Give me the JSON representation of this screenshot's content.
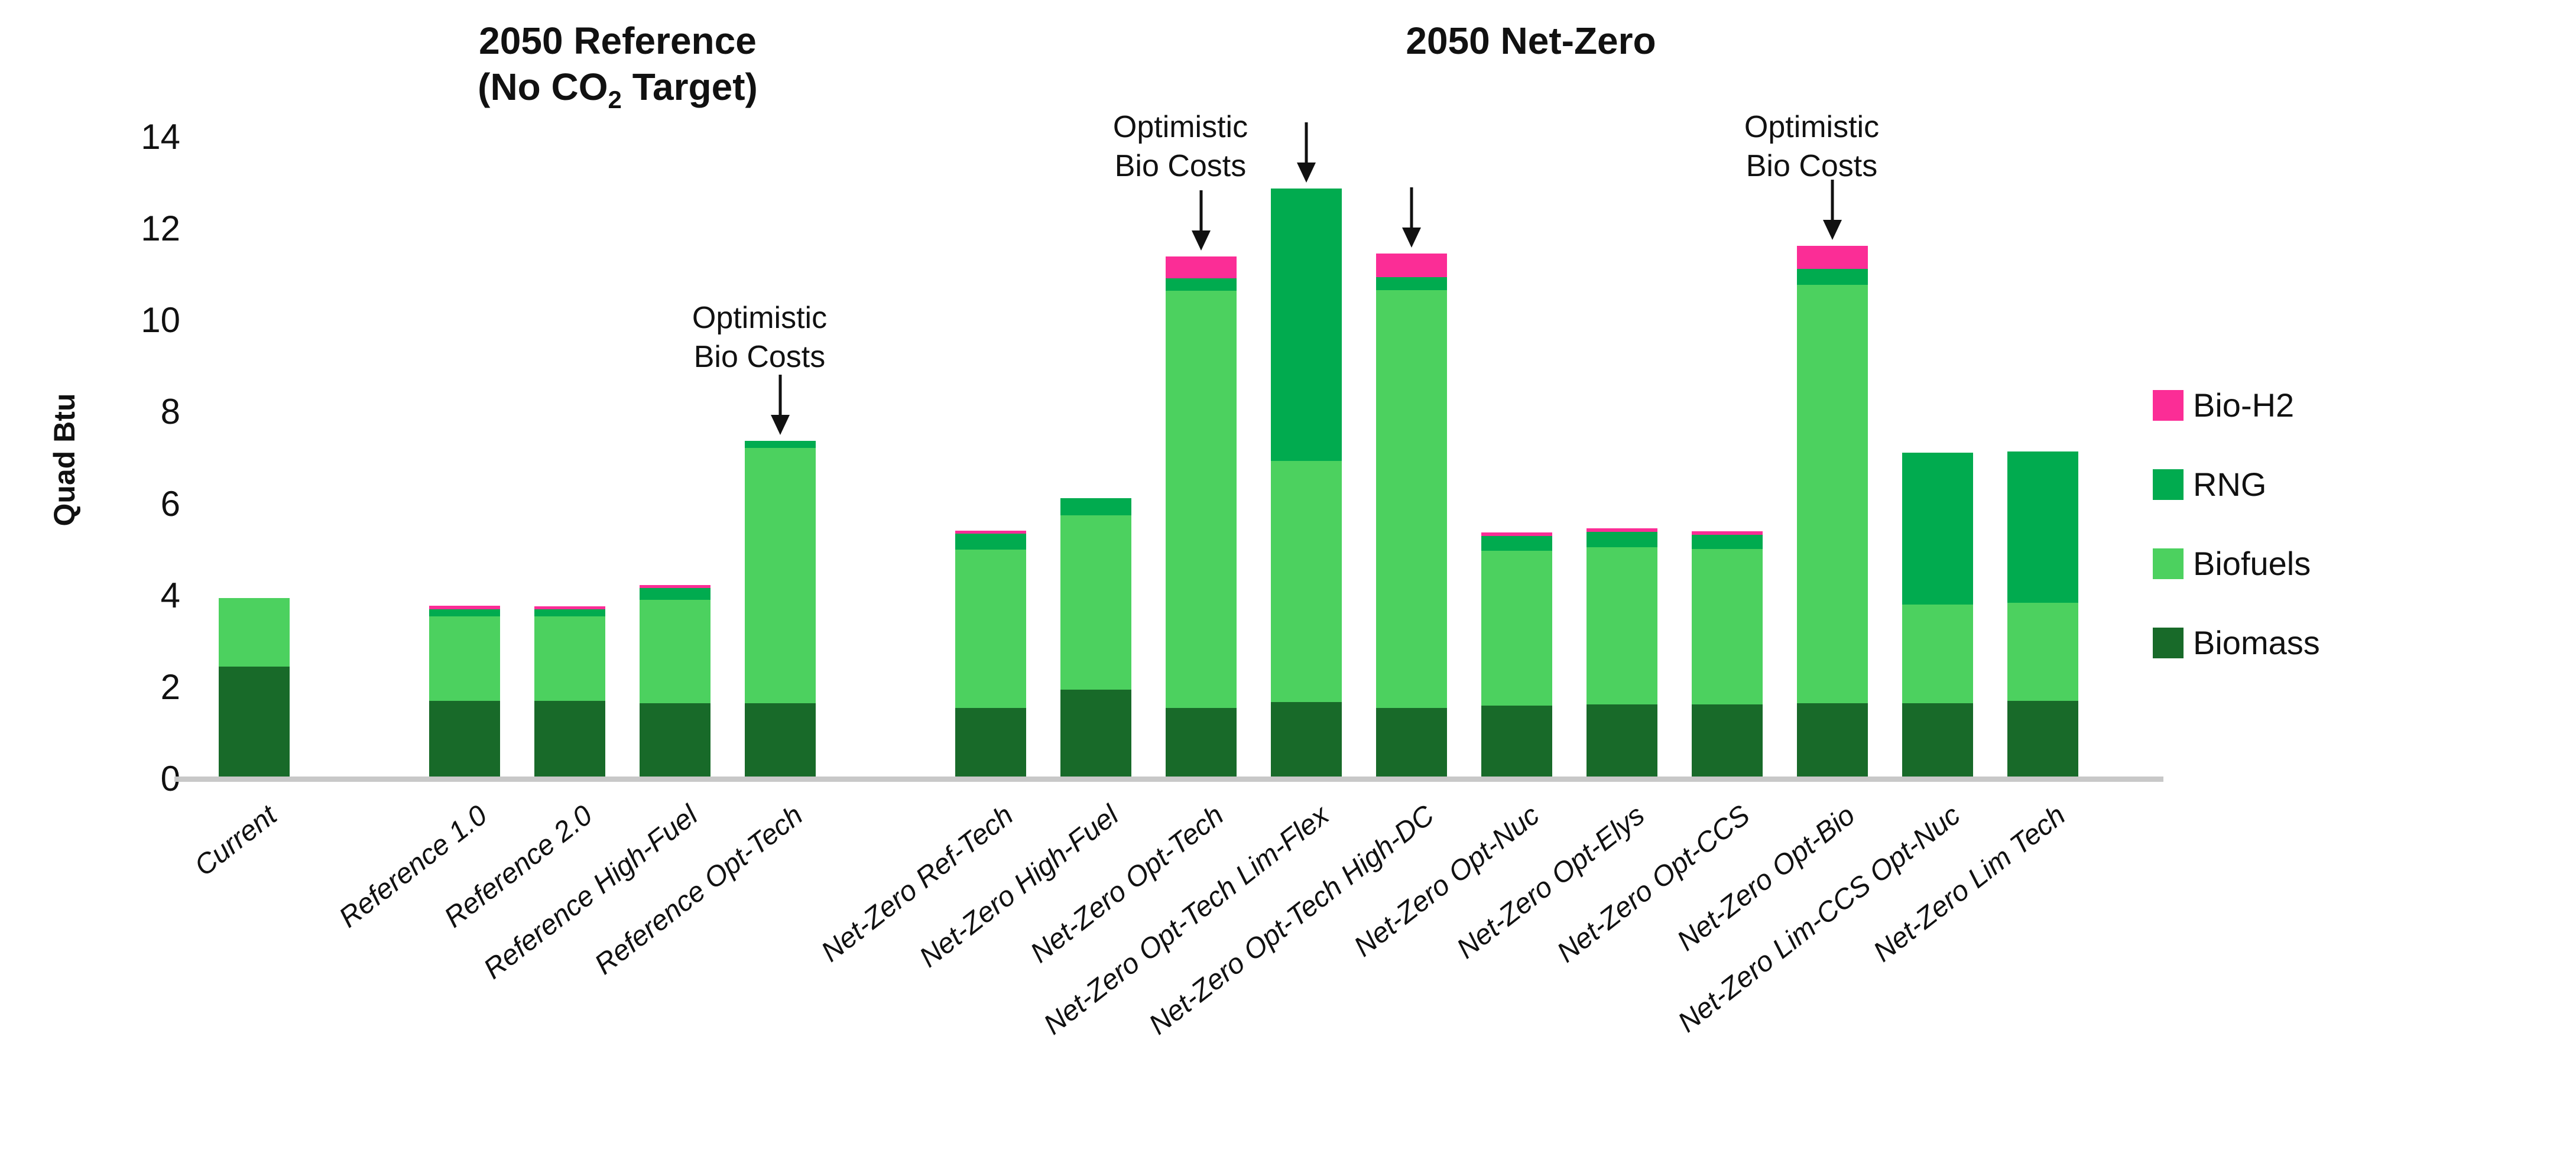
{
  "chart": {
    "ylabel": "Quad Btu",
    "group_titles": [
      {
        "line1": "2050 Reference",
        "line2_pre": "(No CO",
        "line2_sub": "2",
        "line2_post": " Target)"
      },
      {
        "line1": "2050 Net-Zero",
        "line2_pre": "",
        "line2_sub": "",
        "line2_post": ""
      }
    ]
  },
  "chart_data": {
    "type": "bar",
    "stacked": true,
    "ylabel": "Quad Btu",
    "ylim": [
      0,
      14
    ],
    "yticks": [
      0,
      2,
      4,
      6,
      8,
      10,
      12,
      14
    ],
    "grid": false,
    "legend_position": "right",
    "legend_order": [
      "Bio-H2",
      "RNG",
      "Biofuels",
      "Biomass"
    ],
    "categories": [
      "Current",
      "Reference 1.0",
      "Reference 2.0",
      "Reference High-Fuel",
      "Reference Opt-Tech",
      "Net-Zero Ref-Tech",
      "Net-Zero High-Fuel",
      "Net-Zero Opt-Tech",
      "Net-Zero Opt-Tech Lim-Flex",
      "Net-Zero Opt-Tech High-DC",
      "Net-Zero Opt-Nuc",
      "Net-Zero Opt-Elys",
      "Net-Zero Opt-CCS",
      "Net-Zero Opt-Bio",
      "Net-Zero Lim-CCS Opt-Nuc",
      "Net-Zero Lim Tech"
    ],
    "series": [
      {
        "name": "Biomass",
        "color": "#186A29",
        "values": [
          2.45,
          1.7,
          1.7,
          1.65,
          1.65,
          1.55,
          1.95,
          1.55,
          1.67,
          1.55,
          1.6,
          1.62,
          1.62,
          1.65,
          1.65,
          1.7
        ]
      },
      {
        "name": "Biofuels",
        "color": "#4CD15F",
        "values": [
          1.5,
          1.85,
          1.85,
          2.25,
          5.57,
          3.45,
          3.8,
          9.1,
          5.26,
          9.11,
          3.37,
          3.43,
          3.39,
          9.13,
          2.15,
          2.14
        ]
      },
      {
        "name": "RNG",
        "color": "#01AB4F",
        "values": [
          0,
          0.15,
          0.15,
          0.27,
          0.15,
          0.35,
          0.37,
          0.27,
          5.95,
          0.29,
          0.33,
          0.34,
          0.32,
          0.35,
          3.32,
          3.3
        ]
      },
      {
        "name": "Bio-H2",
        "color": "#FB2D96",
        "values": [
          0,
          0.08,
          0.07,
          0.06,
          0,
          0.06,
          0,
          0.48,
          0,
          0.51,
          0.07,
          0.07,
          0.07,
          0.5,
          0,
          0
        ]
      }
    ],
    "annotations": [
      {
        "line1": "Optimistic",
        "line2": "Bio Costs",
        "targets": [
          "Reference Opt-Tech"
        ]
      },
      {
        "line1": "Optimistic",
        "line2": "Bio Costs",
        "targets": [
          "Net-Zero Opt-Tech",
          "Net-Zero Opt-Tech Lim-Flex",
          "Net-Zero Opt-Tech High-DC"
        ]
      },
      {
        "line1": "Optimistic",
        "line2": "Bio Costs",
        "targets": [
          "Net-Zero Opt-Bio"
        ]
      }
    ]
  }
}
